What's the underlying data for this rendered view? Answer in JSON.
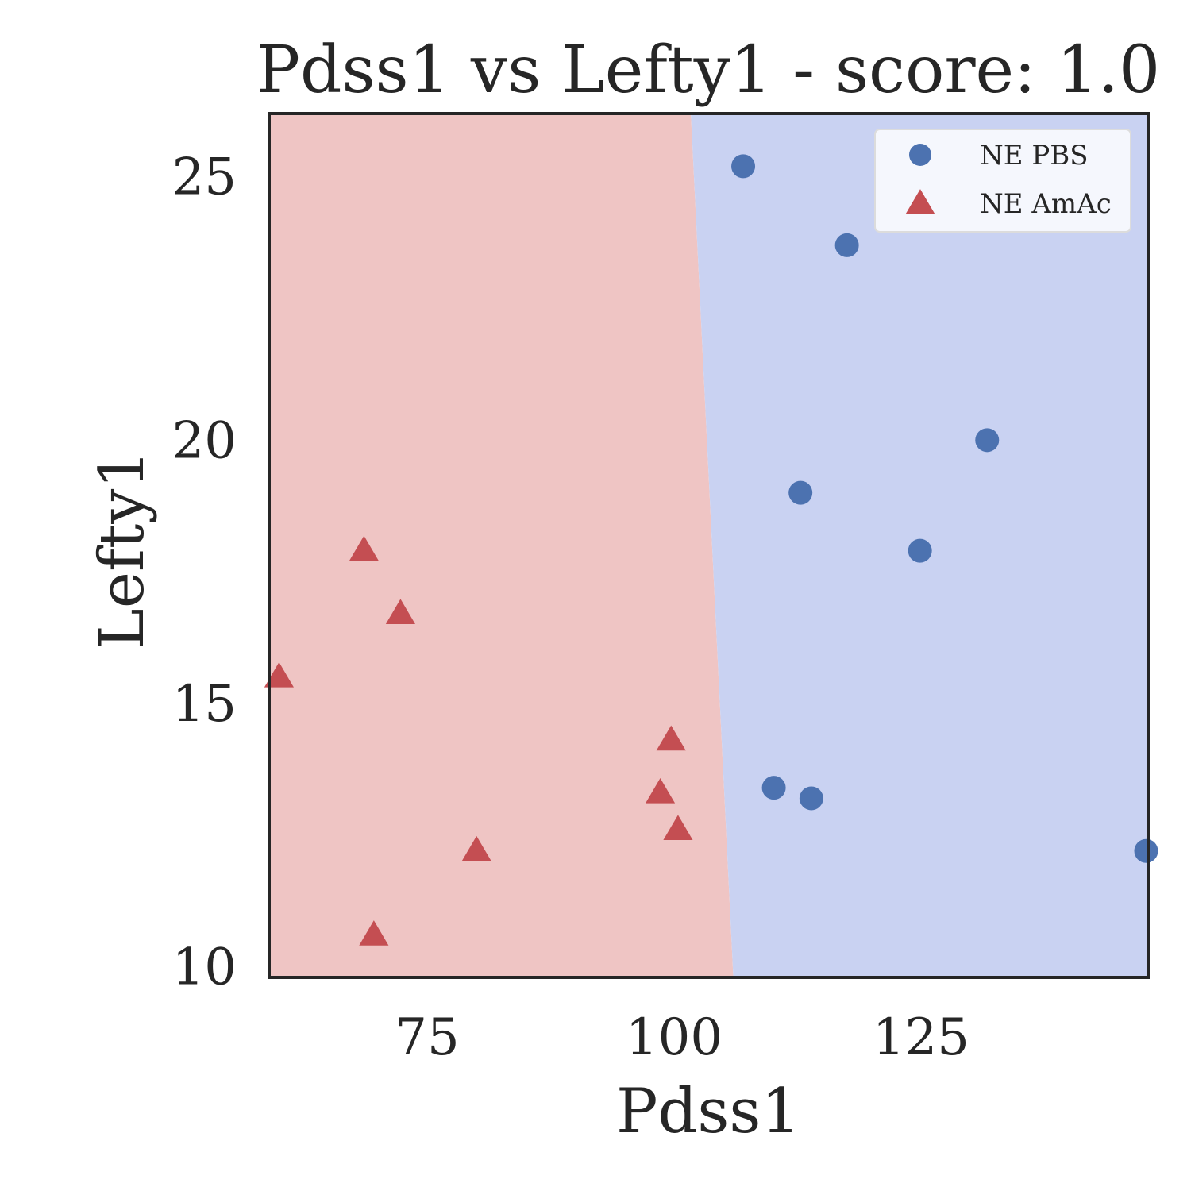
{
  "chart_data": {
    "type": "scatter",
    "title": "Pdss1 vs Lefty1 - score: 1.0",
    "xlabel": "Pdss1",
    "ylabel": "Lefty1",
    "xlim": [
      59,
      148
    ],
    "ylim": [
      9.8,
      26.2
    ],
    "xticks": [
      75,
      100,
      125
    ],
    "yticks": [
      10,
      15,
      20,
      25
    ],
    "grid": false,
    "legend_position": "top-right",
    "decision_boundary": {
      "top": {
        "x": 101.7,
        "y": 26.2
      },
      "bottom": {
        "x": 106.0,
        "y": 9.8
      },
      "left_region_color": "#efc5c4",
      "right_region_color": "#c9d2f2"
    },
    "series": [
      {
        "name": "NE PBS",
        "marker": "circle",
        "color": "#4c72b0",
        "points": [
          {
            "x": 107.0,
            "y": 25.2
          },
          {
            "x": 117.5,
            "y": 23.7
          },
          {
            "x": 131.7,
            "y": 20.0
          },
          {
            "x": 112.8,
            "y": 19.0
          },
          {
            "x": 124.9,
            "y": 17.9
          },
          {
            "x": 110.1,
            "y": 13.4
          },
          {
            "x": 113.9,
            "y": 13.2
          },
          {
            "x": 147.8,
            "y": 12.2
          }
        ]
      },
      {
        "name": "NE AmAc",
        "marker": "triangle",
        "color": "#c44e52",
        "points": [
          {
            "x": 68.6,
            "y": 17.9
          },
          {
            "x": 72.3,
            "y": 16.7
          },
          {
            "x": 60.0,
            "y": 15.5
          },
          {
            "x": 99.7,
            "y": 14.3
          },
          {
            "x": 98.6,
            "y": 13.3
          },
          {
            "x": 100.4,
            "y": 12.6
          },
          {
            "x": 80.0,
            "y": 12.2
          },
          {
            "x": 69.6,
            "y": 10.6
          }
        ]
      }
    ]
  }
}
